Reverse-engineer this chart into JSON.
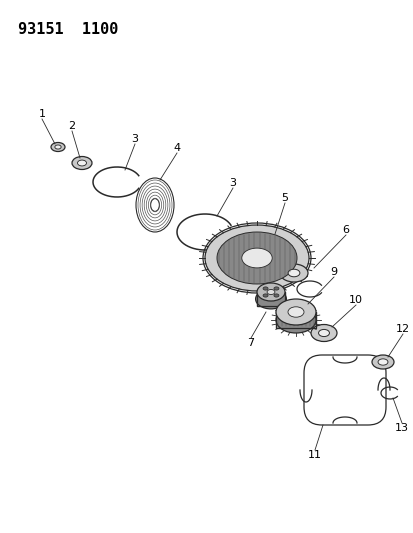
{
  "title_code": "93151  1100",
  "bg_color": "#ffffff",
  "line_color": "#2a2a2a",
  "text_color": "#000000",
  "font_size": 8,
  "fig_w": 4.14,
  "fig_h": 5.33,
  "dpi": 100
}
